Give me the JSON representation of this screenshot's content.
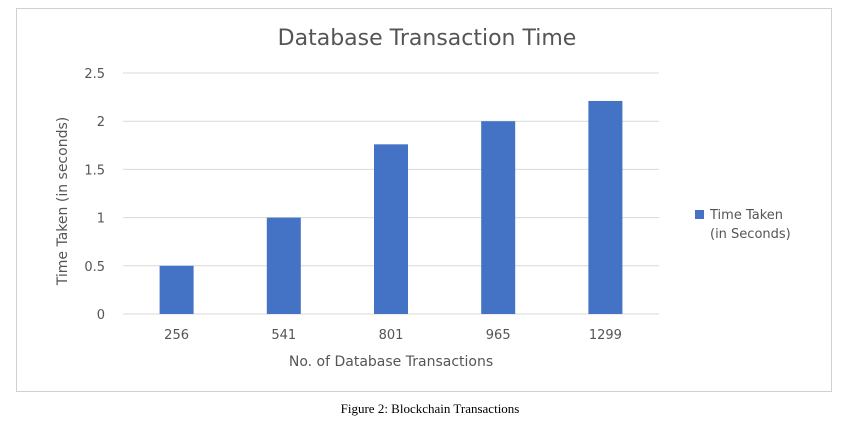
{
  "chart_data": {
    "type": "bar",
    "title": "Database Transaction Time",
    "categories": [
      "256",
      "541",
      "801",
      "965",
      "1299"
    ],
    "series": [
      {
        "name": "Time Taken (in Seconds)",
        "values": [
          0.5,
          1.0,
          1.76,
          2.0,
          2.21
        ]
      }
    ],
    "xlabel": "No. of Database Transactions",
    "ylabel": "Time Taken (in seconds)",
    "ylim": [
      0,
      2.5
    ],
    "yticks": [
      "0",
      "0.5",
      "1",
      "1.5",
      "2",
      "2.5"
    ],
    "grid": true,
    "legend_position": "right",
    "legend_lines": [
      "Time Taken",
      "(in Seconds)"
    ],
    "bar_color": "#4472C4"
  },
  "caption": "Figure 2: Blockchain Transactions"
}
